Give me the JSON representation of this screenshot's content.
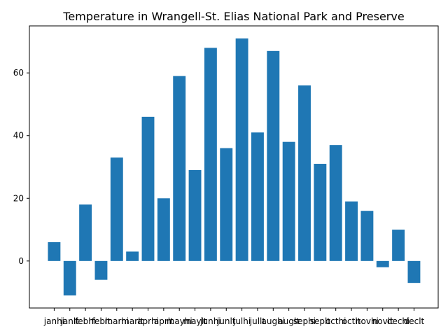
{
  "chart_data": {
    "type": "bar",
    "title": "Temperature in Wrangell-St. Elias National Park and Preserve",
    "xlabel": "",
    "ylabel": "",
    "categories": [
      "janhi",
      "janlt",
      "febhi",
      "feblt",
      "marhi",
      "marlt",
      "aprhi",
      "aprlt",
      "mayhi",
      "maylt",
      "junhi",
      "junlt",
      "julhi",
      "jullt",
      "aughi",
      "auglt",
      "sephi",
      "seplt",
      "octhi",
      "octlt",
      "novhi",
      "novlt",
      "dechi",
      "declt"
    ],
    "values": [
      6,
      -11,
      18,
      -6,
      33,
      3,
      46,
      20,
      59,
      29,
      68,
      36,
      71,
      41,
      67,
      38,
      56,
      31,
      37,
      19,
      16,
      -2,
      10,
      -7
    ],
    "ylim": [
      -15,
      75
    ],
    "yticks": [
      0,
      20,
      40,
      60
    ],
    "bar_color": "#1f77b4",
    "grid": false,
    "legend": "none"
  }
}
